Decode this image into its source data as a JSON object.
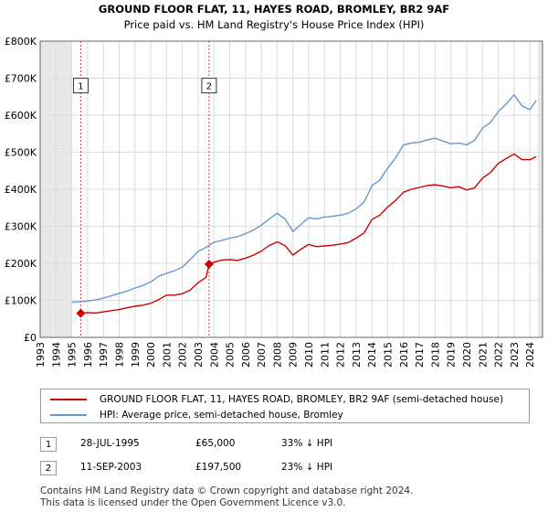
{
  "chart_data": {
    "type": "line",
    "title": "GROUND FLOOR FLAT, 11, HAYES ROAD, BROMLEY, BR2 9AF",
    "subtitle": "Price paid vs. HM Land Registry's House Price Index (HPI)",
    "xlim": [
      1993.0,
      2024.8
    ],
    "ylim": [
      0,
      800000
    ],
    "x_ticks": [
      1993,
      1994,
      1995,
      1996,
      1997,
      1998,
      1999,
      2000,
      2001,
      2002,
      2003,
      2004,
      2005,
      2006,
      2007,
      2008,
      2009,
      2010,
      2011,
      2012,
      2013,
      2014,
      2015,
      2016,
      2017,
      2018,
      2019,
      2020,
      2021,
      2022,
      2023,
      2024
    ],
    "y_ticks": [
      0,
      100000,
      200000,
      300000,
      400000,
      500000,
      600000,
      700000,
      800000
    ],
    "y_tick_labels": [
      "£0",
      "£100K",
      "£200K",
      "£300K",
      "£400K",
      "£500K",
      "£600K",
      "£700K",
      "£800K"
    ],
    "shaded_before_year": 1995.0,
    "shaded_after_year": 2024.5,
    "series": [
      {
        "name": "GROUND FLOOR FLAT, 11, HAYES ROAD, BROMLEY, BR2 9AF (semi-detached house)",
        "color": "#cc0000",
        "x": [
          1995.57,
          1996.0,
          1996.5,
          1997.0,
          1997.5,
          1998.0,
          1998.5,
          1999.0,
          1999.5,
          2000.0,
          2000.5,
          2001.0,
          2001.5,
          2002.0,
          2002.5,
          2003.0,
          2003.5,
          2003.69,
          2004.0,
          2004.5,
          2005.0,
          2005.5,
          2006.0,
          2006.5,
          2007.0,
          2007.5,
          2008.0,
          2008.5,
          2009.0,
          2009.5,
          2010.0,
          2010.5,
          2011.0,
          2011.5,
          2012.0,
          2012.5,
          2013.0,
          2013.5,
          2014.0,
          2014.5,
          2015.0,
          2015.5,
          2016.0,
          2016.5,
          2017.0,
          2017.5,
          2018.0,
          2018.5,
          2019.0,
          2019.5,
          2020.0,
          2020.5,
          2021.0,
          2021.5,
          2022.0,
          2022.5,
          2023.0,
          2023.5,
          2024.0,
          2024.4
        ],
        "values": [
          65000,
          67000,
          66000,
          69000,
          72000,
          75000,
          80000,
          84000,
          87000,
          92000,
          102000,
          114000,
          114000,
          118000,
          128000,
          148000,
          162000,
          197500,
          203000,
          209000,
          210000,
          208000,
          214000,
          222000,
          233000,
          248000,
          258000,
          248000,
          222000,
          238000,
          251000,
          245000,
          247000,
          249000,
          252000,
          256000,
          268000,
          282000,
          318000,
          330000,
          352000,
          370000,
          392000,
          400000,
          405000,
          410000,
          412000,
          409000,
          404000,
          407000,
          398000,
          404000,
          430000,
          445000,
          470000,
          483000,
          495000,
          480000,
          480000,
          488000
        ]
      },
      {
        "name": "HPI: Average price, semi-detached house, Bromley",
        "color": "#6699cc",
        "x": [
          1995.0,
          1995.5,
          1996.0,
          1996.5,
          1997.0,
          1997.5,
          1998.0,
          1998.5,
          1999.0,
          1999.5,
          2000.0,
          2000.5,
          2001.0,
          2001.5,
          2002.0,
          2002.5,
          2003.0,
          2003.5,
          2004.0,
          2004.5,
          2005.0,
          2005.5,
          2006.0,
          2006.5,
          2007.0,
          2007.5,
          2008.0,
          2008.5,
          2009.0,
          2009.5,
          2010.0,
          2010.5,
          2011.0,
          2011.5,
          2012.0,
          2012.5,
          2013.0,
          2013.5,
          2014.0,
          2014.5,
          2015.0,
          2015.5,
          2016.0,
          2016.5,
          2017.0,
          2017.5,
          2018.0,
          2018.5,
          2019.0,
          2019.5,
          2020.0,
          2020.5,
          2021.0,
          2021.5,
          2022.0,
          2022.5,
          2023.0,
          2023.5,
          2024.0,
          2024.4
        ],
        "values": [
          95000,
          96000,
          98000,
          101000,
          106000,
          112000,
          119000,
          125000,
          133000,
          140000,
          150000,
          165000,
          173000,
          180000,
          190000,
          210000,
          232000,
          243000,
          257000,
          262000,
          268000,
          272000,
          280000,
          290000,
          303000,
          320000,
          335000,
          320000,
          286000,
          305000,
          323000,
          320000,
          325000,
          327000,
          330000,
          335000,
          347000,
          365000,
          410000,
          425000,
          457000,
          485000,
          520000,
          525000,
          527000,
          533000,
          538000,
          530000,
          523000,
          525000,
          520000,
          532000,
          565000,
          580000,
          610000,
          630000,
          655000,
          625000,
          615000,
          640000
        ]
      }
    ],
    "annotations": [
      {
        "label": "1",
        "x": 1995.57,
        "y": 65000,
        "box_y": 680000
      },
      {
        "label": "2",
        "x": 2003.69,
        "y": 197500,
        "box_y": 680000
      }
    ]
  },
  "legend": [
    {
      "label": "GROUND FLOOR FLAT, 11, HAYES ROAD, BROMLEY, BR2 9AF (semi-detached house)",
      "color": "#cc0000"
    },
    {
      "label": "HPI: Average price, semi-detached house, Bromley",
      "color": "#6699cc"
    }
  ],
  "sales": [
    {
      "num": "1",
      "date": "28-JUL-1995",
      "price": "£65,000",
      "hpi": "33% ↓ HPI"
    },
    {
      "num": "2",
      "date": "11-SEP-2003",
      "price": "£197,500",
      "hpi": "23% ↓ HPI"
    }
  ],
  "footer": {
    "line1": "Contains HM Land Registry data © Crown copyright and database right 2024.",
    "line2": "This data is licensed under the Open Government Licence v3.0."
  }
}
